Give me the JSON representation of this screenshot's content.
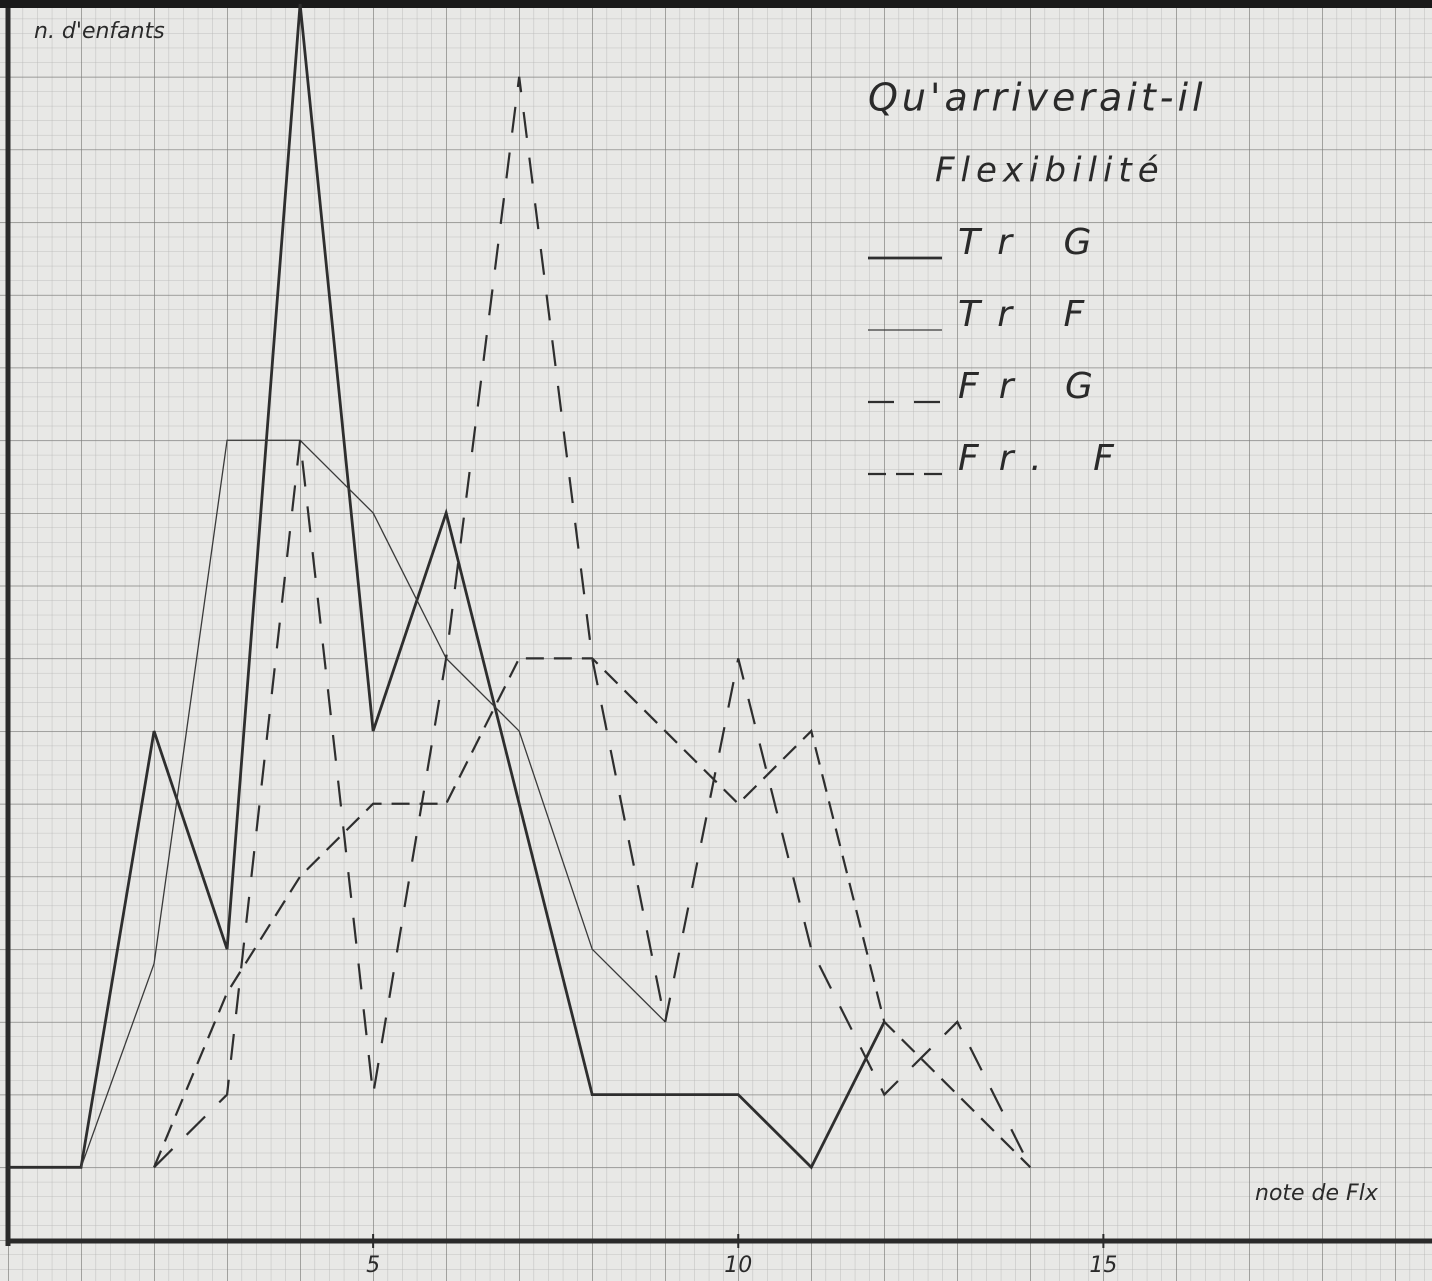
{
  "chart_data": {
    "type": "line",
    "title": "Qu'arriverait-il",
    "subtitle": "Flexibilité",
    "y_label": "n. d'enfants",
    "x_label": "note de Flx",
    "x": [
      0,
      1,
      2,
      3,
      4,
      5,
      6,
      7,
      8,
      9,
      10,
      11,
      12,
      13,
      14
    ],
    "xlim": [
      0,
      19.5
    ],
    "xticks": [
      5,
      10,
      15
    ],
    "ylim": [
      0,
      17
    ],
    "grid": true,
    "series": [
      {
        "name": "Tr G",
        "color": "#2e2e2e",
        "style": "thick",
        "values": [
          1,
          1,
          7,
          4,
          17,
          7,
          10,
          6,
          2,
          2,
          2,
          1,
          3,
          null,
          null
        ]
      },
      {
        "name": "Tr F",
        "color": "#3a3a3a",
        "style": "thin",
        "values": [
          null,
          1,
          3.8,
          11,
          11,
          10,
          8,
          7,
          4,
          3,
          null,
          null,
          null,
          null,
          null
        ]
      },
      {
        "name": "Fr G",
        "color": "#2e2e2e",
        "style": "long-dash",
        "values": [
          null,
          null,
          1,
          2,
          11,
          2,
          8,
          16,
          8,
          3,
          8,
          4,
          2,
          3,
          1
        ]
      },
      {
        "name": "Fr. F",
        "color": "#2e2e2e",
        "style": "short-dash",
        "values": [
          null,
          null,
          1,
          3.4,
          5,
          6,
          6,
          8,
          8,
          7,
          6,
          7,
          3,
          2,
          1
        ]
      }
    ]
  }
}
